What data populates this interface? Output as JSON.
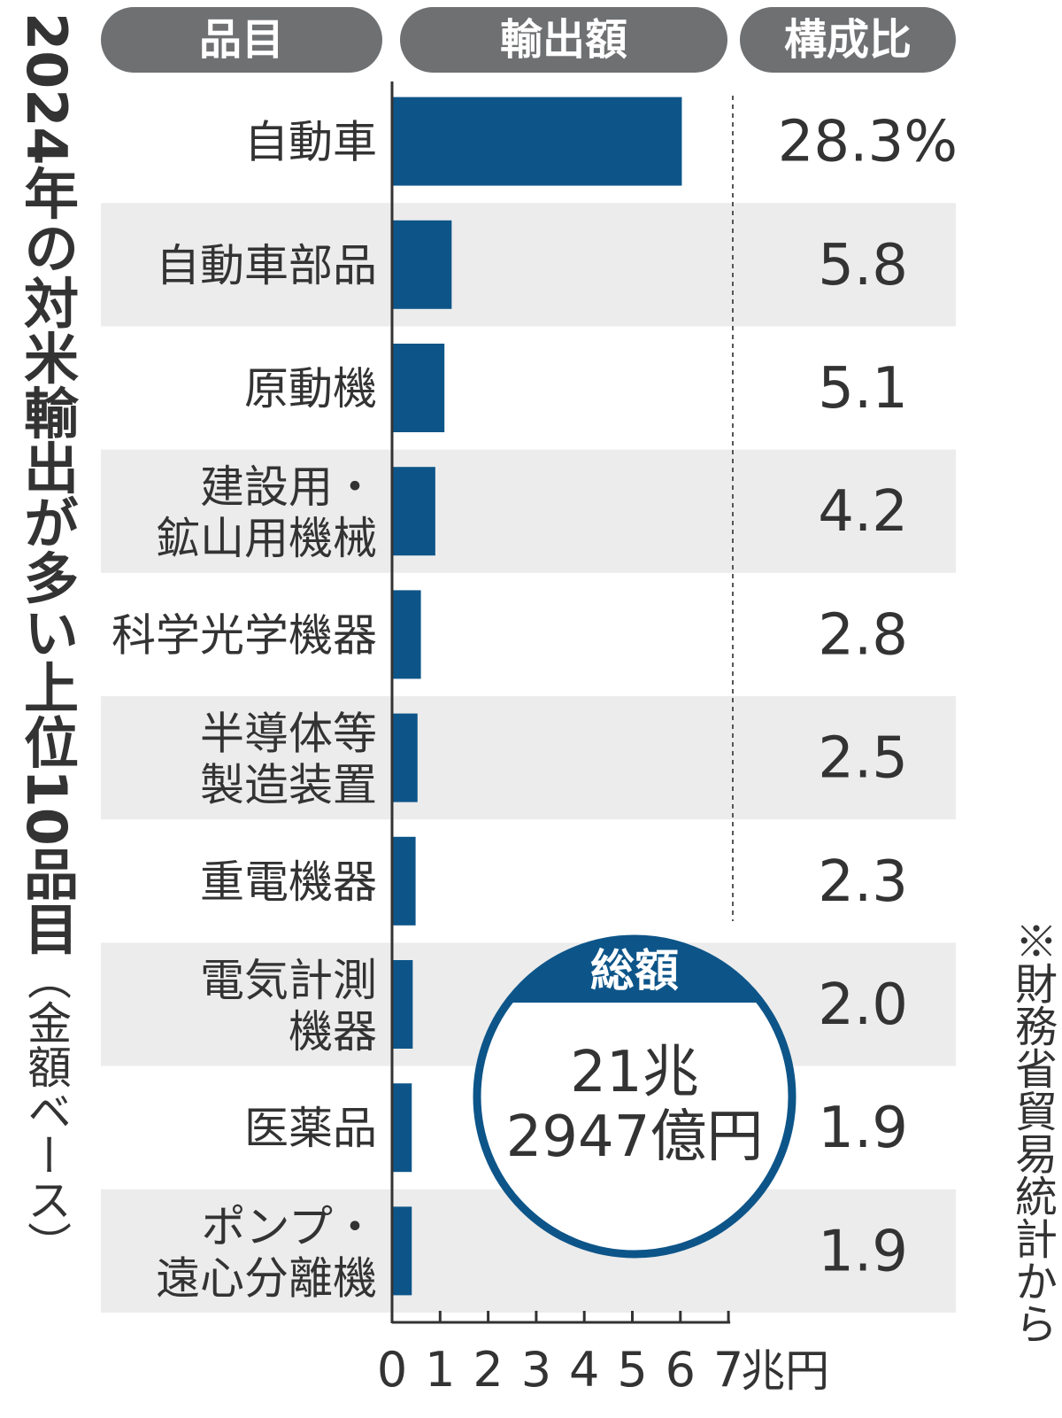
{
  "title": "2024年の対米輸出が多い上位10品目",
  "title_sub": "（金額ベース）",
  "source": "※財務省貿易統計から",
  "headers": {
    "item": "品目",
    "amount": "輸出額",
    "share": "構成比"
  },
  "total": {
    "label": "総額",
    "line1": "21兆",
    "line2": "2947億円"
  },
  "colors": {
    "bar": "#0d5589",
    "row_alt": "#ececec",
    "header_pill": "#6f7072",
    "circle_border": "#0d5589"
  },
  "chart_data": {
    "type": "bar",
    "orientation": "horizontal",
    "categories": [
      [
        "自動車"
      ],
      [
        "自動車部品"
      ],
      [
        "原動機"
      ],
      [
        "建設用・",
        "鉱山用機械"
      ],
      [
        "科学光学機器"
      ],
      [
        "半導体等",
        "製造装置"
      ],
      [
        "重電機器"
      ],
      [
        "電気計測",
        "機器"
      ],
      [
        "医薬品"
      ],
      [
        "ポンプ・",
        "遠心分離機"
      ]
    ],
    "values": [
      6.03,
      1.24,
      1.09,
      0.9,
      0.6,
      0.53,
      0.49,
      0.43,
      0.41,
      0.41
    ],
    "shares": [
      "28.3%",
      "5.8",
      "5.1",
      "4.2",
      "2.8",
      "2.5",
      "2.3",
      "2.0",
      "1.9",
      "1.9"
    ],
    "xlim": [
      0,
      7
    ],
    "xticks": [
      "0",
      "1",
      "2",
      "3",
      "4",
      "5",
      "6",
      "7"
    ],
    "xunit": "兆円",
    "grid": false
  }
}
